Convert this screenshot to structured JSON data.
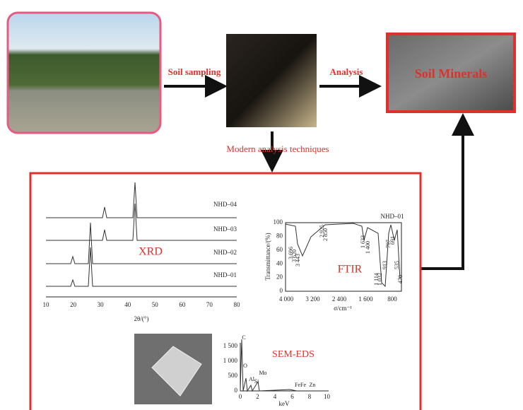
{
  "steps": {
    "sampling": "Soil sampling",
    "analysis": "Analysis",
    "minerals": "Soil Minerals",
    "techniques": "Modern analysis techniques"
  },
  "xrd": {
    "title": "XRD",
    "samples": [
      "NHD–04",
      "NHD–03",
      "NHD–02",
      "NHD–01"
    ],
    "xticks": [
      "10",
      "20",
      "30",
      "40",
      "50",
      "60",
      "70",
      "80"
    ],
    "xlabel": "2θ/(°)"
  },
  "ftir": {
    "title": "FTIR",
    "sample": "NHD–01",
    "ylabel": "Transmittance/(%)",
    "yticks": [
      "100",
      "80",
      "60",
      "40",
      "20",
      "0"
    ],
    "xticks": [
      "4 000",
      "3 200",
      "2 400",
      "1 600",
      "800"
    ],
    "xlabel": "σ/cm⁻¹",
    "peaks": [
      "3 696",
      "3 620",
      "3 443",
      "2 925",
      "2 850",
      "1 633",
      "1 400",
      "1 114",
      "1 032",
      "913",
      "797",
      "691",
      "535",
      "470"
    ]
  },
  "sem_eds": {
    "title": "SEM-EDS",
    "yticks": [
      "1 500",
      "1 000",
      "500",
      "0"
    ],
    "xticks": [
      "0",
      "2",
      "4",
      "6",
      "8",
      "10"
    ],
    "xlabel": "keV",
    "elements": [
      "C",
      "O",
      "Al",
      "Si",
      "Mo",
      "Fe",
      "Fe",
      "Zn"
    ]
  }
}
